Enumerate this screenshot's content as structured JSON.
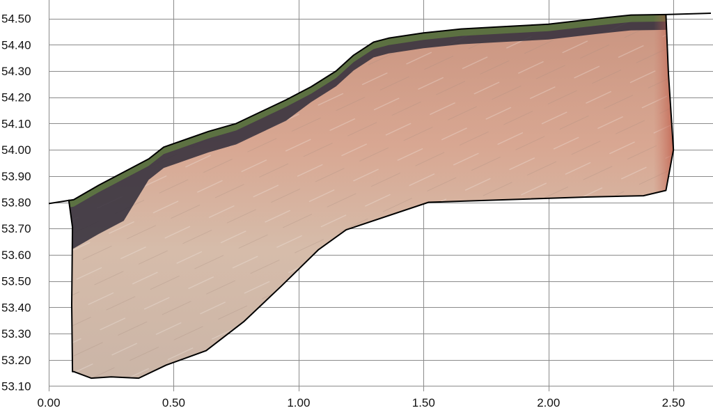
{
  "chart_data": {
    "type": "area",
    "title": "",
    "xlabel": "",
    "ylabel": "",
    "grid": true,
    "legend": "none",
    "xlim": [
      0.0,
      2.65
    ],
    "ylim": [
      53.08,
      54.52
    ],
    "x_ticks": [
      "0.00",
      "0.50",
      "1.00",
      "1.50",
      "2.00",
      "2.50"
    ],
    "x_tick_values": [
      0.0,
      0.5,
      1.0,
      1.5,
      2.0,
      2.5
    ],
    "y_ticks": [
      "54.50",
      "54.40",
      "54.30",
      "54.20",
      "54.10",
      "54.00",
      "53.90",
      "53.80",
      "53.70",
      "53.60",
      "53.50",
      "53.40",
      "53.30",
      "53.20",
      "53.10"
    ],
    "y_tick_values": [
      54.5,
      54.4,
      54.3,
      54.2,
      54.1,
      54.0,
      53.9,
      53.8,
      53.7,
      53.6,
      53.5,
      53.4,
      53.3,
      53.2,
      53.1
    ],
    "colors": {
      "outline": "#000000",
      "grid": "#8a8a8a",
      "sand": "#d2b8a6",
      "subsoil": "#c99480",
      "humus": "#34303c",
      "grass": "#6e9a3e",
      "root_red": "#b8503a"
    },
    "series": [
      {
        "x": [
          0.0,
          0.1,
          0.2,
          0.3,
          0.4,
          0.46,
          0.55,
          0.64,
          0.75,
          0.85,
          0.95,
          1.05,
          1.15,
          1.22,
          1.3,
          1.36,
          1.5,
          1.65,
          1.8,
          2.0,
          2.2,
          2.33,
          2.47,
          2.65
        ],
        "values": [
          53.795,
          53.81,
          53.865,
          53.915,
          53.965,
          54.01,
          54.04,
          54.07,
          54.1,
          54.145,
          54.19,
          54.24,
          54.3,
          54.36,
          54.41,
          54.425,
          54.445,
          54.46,
          54.468,
          54.478,
          54.5,
          54.513,
          54.515,
          54.52
        ]
      },
      {
        "x": [
          0.08,
          0.095,
          0.092,
          0.095,
          0.1,
          0.17,
          0.25,
          0.36,
          0.47,
          0.63,
          0.78,
          0.93,
          1.08,
          1.19,
          1.52,
          2.15,
          2.38,
          2.47,
          2.5,
          2.48,
          2.47
        ],
        "values": [
          53.81,
          53.705,
          53.41,
          53.155,
          53.155,
          53.13,
          53.135,
          53.13,
          53.18,
          53.235,
          53.345,
          53.48,
          53.62,
          53.695,
          53.8,
          53.82,
          53.825,
          53.845,
          54.0,
          54.29,
          54.515
        ]
      }
    ]
  }
}
